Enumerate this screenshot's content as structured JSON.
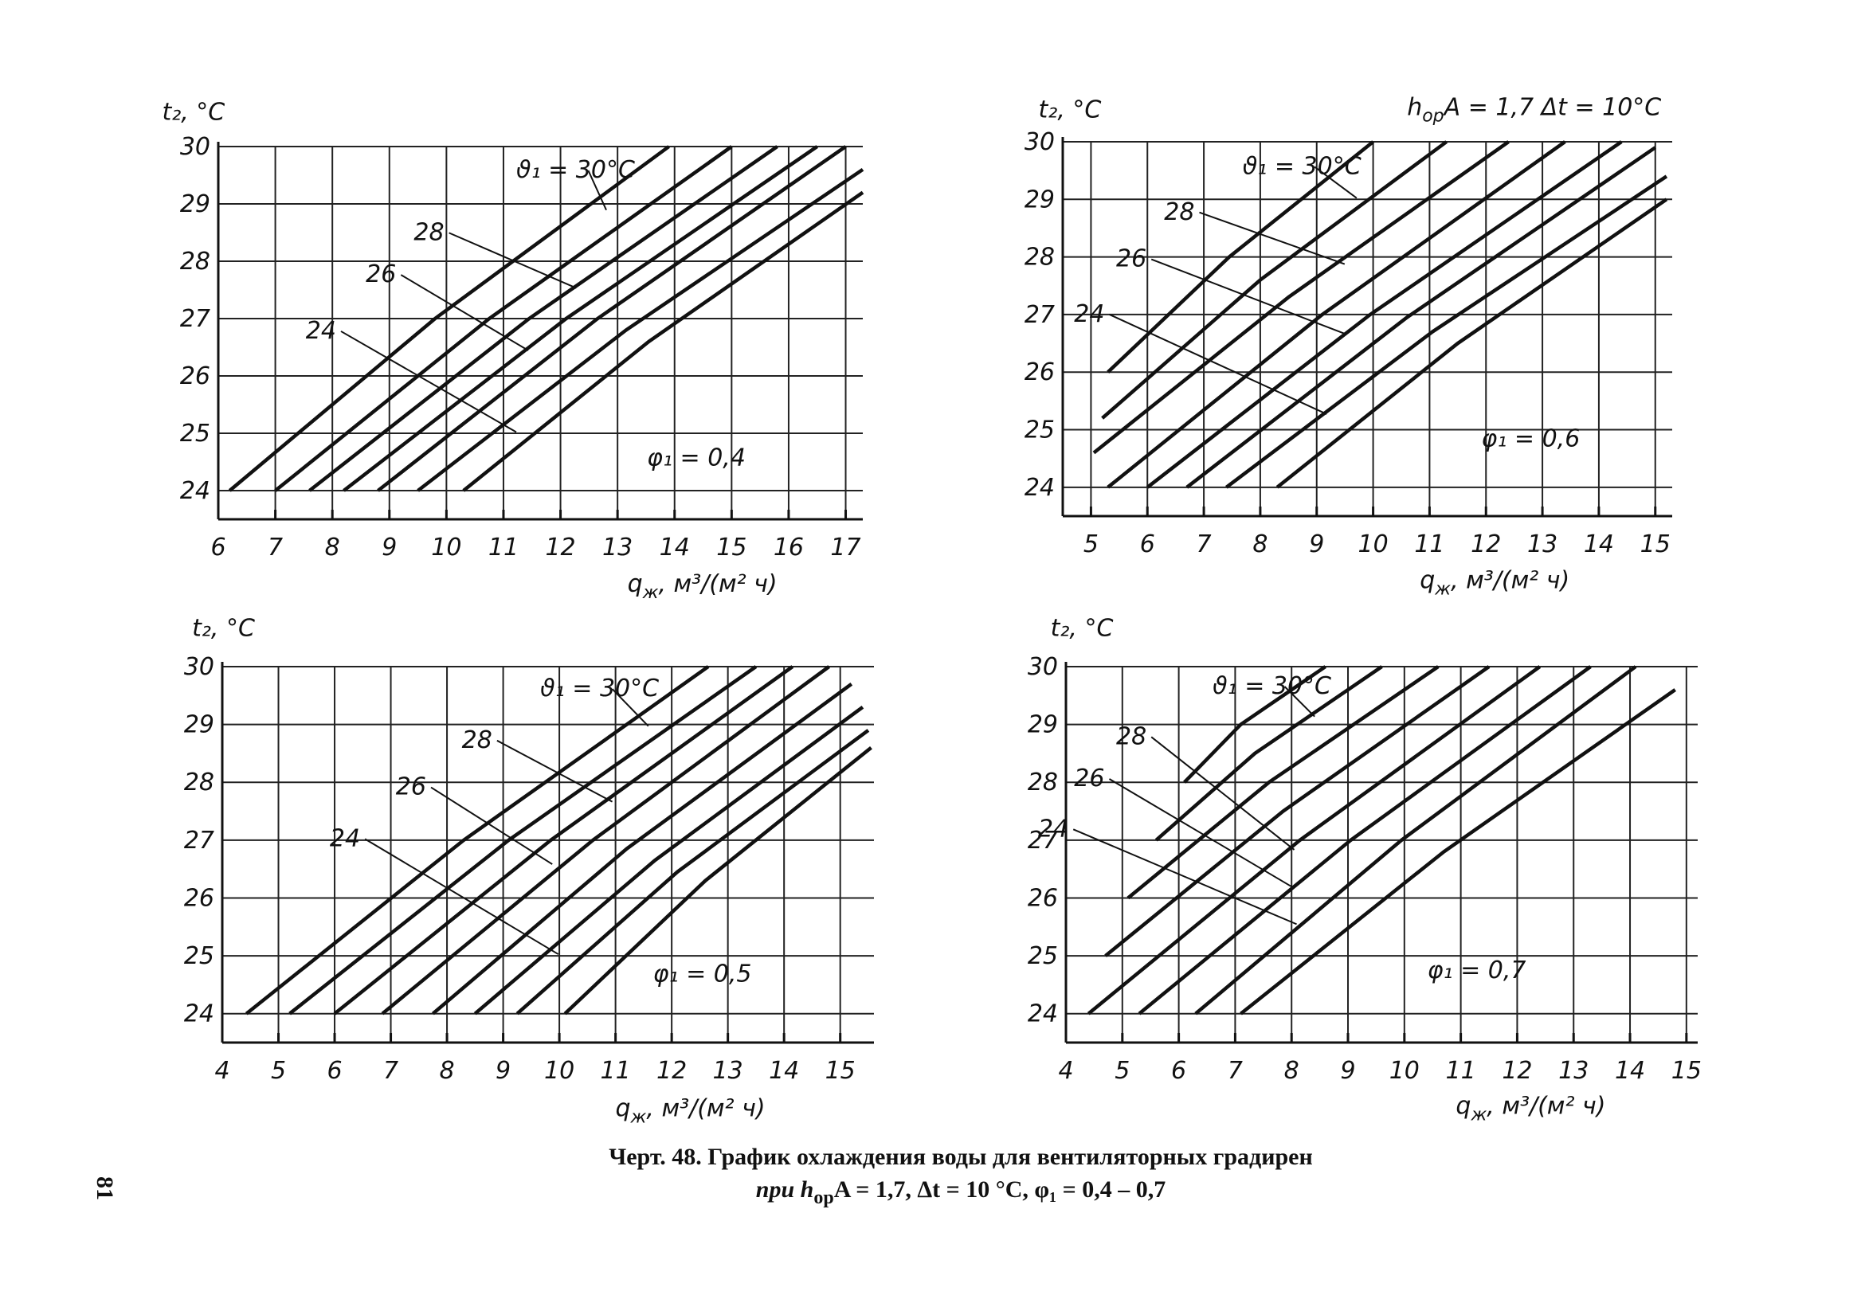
{
  "chart_data": [
    {
      "type": "line",
      "y_label": "t₂, °C",
      "x_label": [
        "q",
        "ж",
        ", м³/(м² ч)"
      ],
      "color": "#111111",
      "grid": true,
      "xlim": [
        6,
        17.3
      ],
      "ylim": [
        23.5,
        30
      ],
      "xticks": [
        6,
        7,
        8,
        9,
        10,
        11,
        12,
        13,
        14,
        15,
        16,
        17
      ],
      "yticks": [
        24,
        25,
        26,
        27,
        28,
        29,
        30
      ],
      "labels": [
        "ϑ₁ = 30°C",
        "28",
        "26",
        "24"
      ],
      "note": "φ₁ = 0,4",
      "series": [
        {
          "x": [
            6.2,
            9.8,
            13.9
          ],
          "values": [
            24,
            27,
            30
          ]
        },
        {
          "x": [
            7.0,
            10.75,
            15.0
          ],
          "values": [
            24,
            27,
            30
          ]
        },
        {
          "x": [
            7.6,
            11.45,
            15.8
          ],
          "values": [
            24,
            27,
            30
          ]
        },
        {
          "x": [
            8.2,
            12.1,
            16.5
          ],
          "values": [
            24,
            27,
            30
          ]
        },
        {
          "x": [
            8.8,
            12.65,
            17.0
          ],
          "values": [
            24,
            27,
            30
          ]
        },
        {
          "x": [
            9.5,
            13.15,
            17.3
          ],
          "values": [
            24,
            26.8,
            29.6
          ]
        },
        {
          "x": [
            10.3,
            13.55,
            17.3
          ],
          "values": [
            24,
            26.6,
            29.2
          ]
        }
      ]
    },
    {
      "type": "line",
      "y_label": "t₂, °C",
      "x_label": [
        "q",
        "ж",
        ", м³/(м² ч)"
      ],
      "color": "#111111",
      "grid": true,
      "header": [
        "h",
        "ор",
        "A = 1,7   Δt = 10°C"
      ],
      "xlim": [
        4.5,
        15.3
      ],
      "ylim": [
        23.5,
        30
      ],
      "xticks": [
        5,
        6,
        7,
        8,
        9,
        10,
        11,
        12,
        13,
        14,
        15
      ],
      "yticks": [
        24,
        25,
        26,
        27,
        28,
        29,
        30
      ],
      "labels": [
        "ϑ₁ = 30°C",
        "28",
        "26",
        "24"
      ],
      "note": "φ₁ = 0,6",
      "series": [
        {
          "x": [
            5.3,
            7.45,
            10.0
          ],
          "values": [
            26,
            28,
            30
          ]
        },
        {
          "x": [
            5.2,
            8.0,
            11.3
          ],
          "values": [
            25.2,
            27.6,
            30
          ]
        },
        {
          "x": [
            5.05,
            8.5,
            12.4
          ],
          "values": [
            24.6,
            27.3,
            30
          ]
        },
        {
          "x": [
            5.3,
            9.1,
            13.4
          ],
          "values": [
            24,
            27,
            30
          ]
        },
        {
          "x": [
            6.0,
            9.95,
            14.4
          ],
          "values": [
            24,
            27,
            30
          ]
        },
        {
          "x": [
            6.7,
            10.6,
            15.0
          ],
          "values": [
            24,
            26.95,
            29.9
          ]
        },
        {
          "x": [
            7.4,
            11.05,
            15.2
          ],
          "values": [
            24,
            26.7,
            29.4
          ]
        },
        {
          "x": [
            8.3,
            11.5,
            15.2
          ],
          "values": [
            24,
            26.5,
            29.0
          ]
        }
      ]
    },
    {
      "type": "line",
      "y_label": "t₂, °C",
      "x_label": [
        "q",
        "ж",
        ", м³/(м² ч)"
      ],
      "color": "#111111",
      "grid": true,
      "xlim": [
        4,
        15.6
      ],
      "ylim": [
        23.5,
        30
      ],
      "xticks": [
        4,
        5,
        6,
        7,
        8,
        9,
        10,
        11,
        12,
        13,
        14,
        15
      ],
      "yticks": [
        24,
        25,
        26,
        27,
        28,
        29,
        30
      ],
      "labels": [
        "ϑ₁ = 30°C",
        "28",
        "26",
        "24"
      ],
      "note": "φ₁ = 0,5",
      "series": [
        {
          "x": [
            4.43,
            8.3,
            12.65
          ],
          "values": [
            24,
            27,
            30
          ]
        },
        {
          "x": [
            5.2,
            9.1,
            13.5
          ],
          "values": [
            24,
            27,
            30
          ]
        },
        {
          "x": [
            6.0,
            9.85,
            14.15
          ],
          "values": [
            24,
            27,
            30
          ]
        },
        {
          "x": [
            6.85,
            10.6,
            14.8
          ],
          "values": [
            24,
            27,
            30
          ]
        },
        {
          "x": [
            7.75,
            11.2,
            15.2
          ],
          "values": [
            24,
            26.85,
            29.7
          ]
        },
        {
          "x": [
            8.5,
            11.7,
            15.4
          ],
          "values": [
            24,
            26.65,
            29.3
          ]
        },
        {
          "x": [
            9.25,
            12.1,
            15.5
          ],
          "values": [
            24,
            26.45,
            28.9
          ]
        },
        {
          "x": [
            10.1,
            12.6,
            15.55
          ],
          "values": [
            24,
            26.3,
            28.6
          ]
        }
      ]
    },
    {
      "type": "line",
      "y_label": "t₂, °C",
      "x_label": [
        "q",
        "ж",
        ", м³/(м² ч)"
      ],
      "color": "#111111",
      "grid": true,
      "xlim": [
        4,
        15.2
      ],
      "ylim": [
        23.5,
        30
      ],
      "xticks": [
        4,
        5,
        6,
        7,
        8,
        9,
        10,
        11,
        12,
        13,
        14,
        15
      ],
      "yticks": [
        24,
        25,
        26,
        27,
        28,
        29,
        30
      ],
      "labels": [
        "ϑ₁ = 30°C",
        "28",
        "26",
        "24"
      ],
      "note": "φ₁ = 0,7",
      "series": [
        {
          "x": [
            6.1,
            7.1,
            8.6
          ],
          "values": [
            28,
            29,
            30
          ]
        },
        {
          "x": [
            5.6,
            7.35,
            9.6
          ],
          "values": [
            27,
            28.5,
            30
          ]
        },
        {
          "x": [
            5.1,
            7.6,
            10.6
          ],
          "values": [
            26,
            28,
            30
          ]
        },
        {
          "x": [
            4.7,
            7.85,
            11.5
          ],
          "values": [
            25,
            27.5,
            30
          ]
        },
        {
          "x": [
            4.4,
            8.15,
            12.4
          ],
          "values": [
            24,
            27,
            30
          ]
        },
        {
          "x": [
            5.3,
            9.05,
            13.3
          ],
          "values": [
            24,
            27,
            30
          ]
        },
        {
          "x": [
            6.3,
            9.95,
            14.1
          ],
          "values": [
            24,
            27,
            30
          ]
        },
        {
          "x": [
            7.1,
            10.7,
            14.8
          ],
          "values": [
            24,
            26.8,
            29.6
          ]
        }
      ]
    }
  ],
  "caption": [
    "Черт. 48. График охлаждения воды для вентиляторных градирен",
    "при h",
    "ор",
    "A = 1,7, Δt = 10 °C, φ₁ = 0,4 – 0,7"
  ],
  "page_number": "81"
}
